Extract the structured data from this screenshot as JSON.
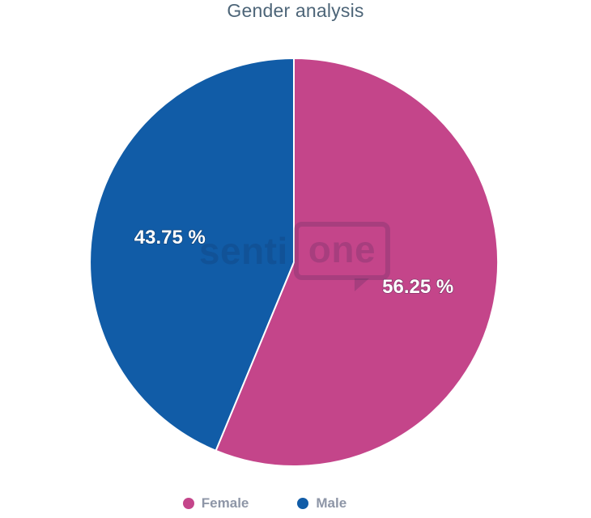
{
  "chart_data": {
    "type": "pie",
    "title": "Gender analysis",
    "series": [
      {
        "name": "Female",
        "value": 56.25,
        "label": "56.25 %",
        "color": "#c4458a"
      },
      {
        "name": "Male",
        "value": 43.75,
        "label": "43.75 %",
        "color": "#115ca7"
      }
    ],
    "start_angle_deg": 0,
    "direction": "clockwise",
    "label_position": "inside",
    "legend_position": "bottom",
    "background": "#ffffff"
  },
  "legend": {
    "items": [
      {
        "label": "Female",
        "color": "#c4458a"
      },
      {
        "label": "Male",
        "color": "#115ca7"
      }
    ]
  },
  "watermark": {
    "text_plain": "senti",
    "text_boxed": "one"
  },
  "colors": {
    "title_text": "#4d6578",
    "legend_text": "#8e96a7",
    "slice_label_text": "#ffffff",
    "slice_border": "#ffffff",
    "watermark": "rgba(18, 32, 66, 0.16)"
  }
}
